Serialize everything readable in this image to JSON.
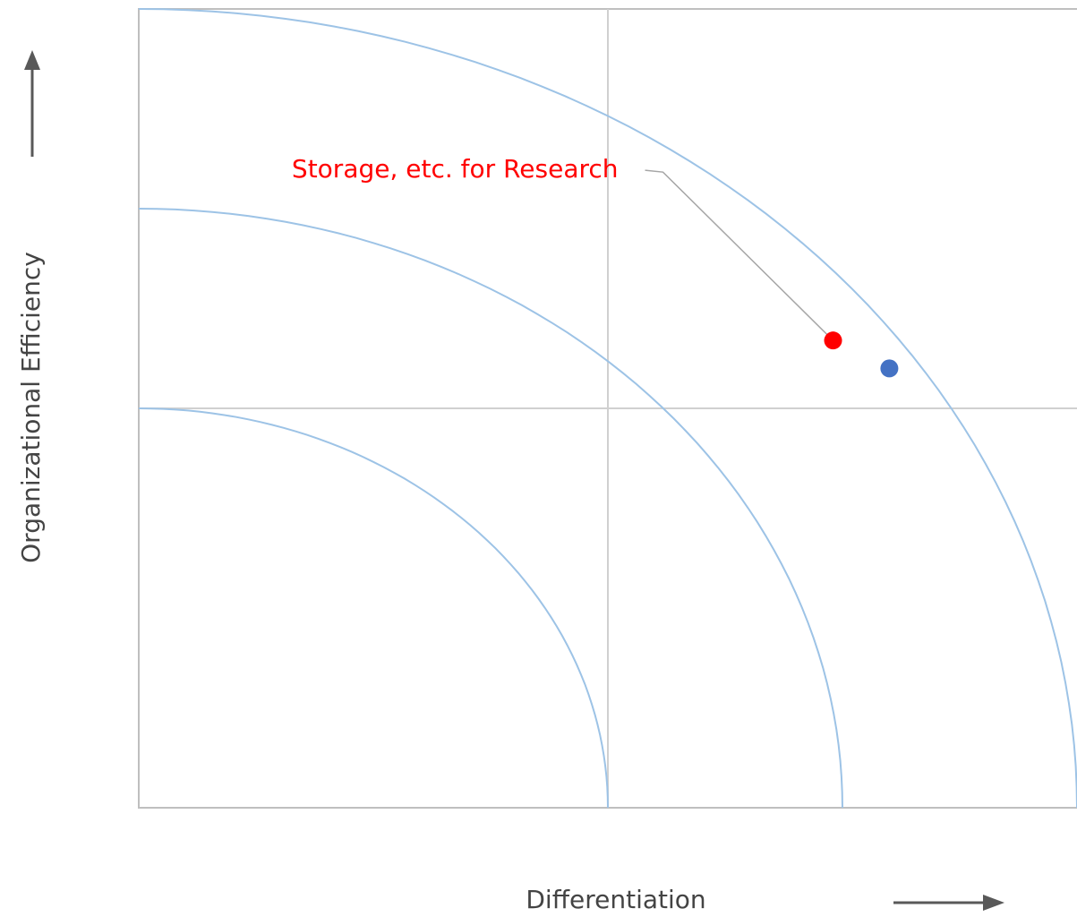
{
  "chart_data": {
    "type": "scatter",
    "x_label": "Differentiation",
    "y_label": "Organizational Efficiency",
    "xlim": [
      0,
      2
    ],
    "ylim": [
      0,
      2
    ],
    "dividers": {
      "x": 1,
      "y": 1
    },
    "curves": [
      1,
      1.5,
      2
    ],
    "curve_color": "#9dc3e6",
    "series": [
      {
        "name": "Storage, etc. for Research",
        "color": "#ff0000",
        "x": [
          1.48
        ],
        "values": [
          1.17
        ]
      },
      {
        "color": "#4472c4",
        "x": [
          1.6
        ],
        "values": [
          1.1
        ]
      }
    ]
  }
}
